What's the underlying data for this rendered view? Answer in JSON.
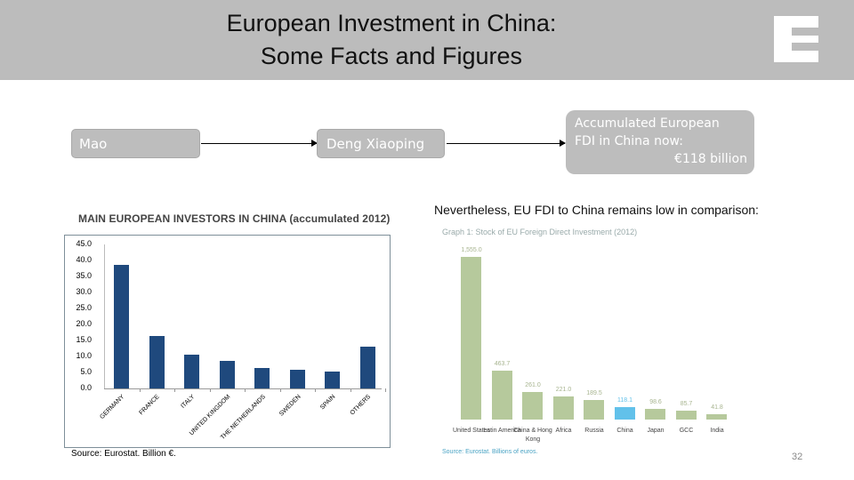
{
  "header": {
    "title_line1": "European Investment in China:",
    "title_line2": "Some Facts and Figures",
    "logo_letter": "E"
  },
  "timeline": {
    "mao": "Mao",
    "deng": "Deng Xiaoping",
    "fdi_line1": "Accumulated European",
    "fdi_line2": "FDI in China now:",
    "fdi_amount": "€118 billion"
  },
  "left_section": {
    "heading": "MAIN EUROPEAN INVESTORS IN CHINA (accumulated 2012)",
    "source": "Source: Eurostat. Billion €."
  },
  "right_section": {
    "heading": "Nevertheless, EU FDI to China remains low in comparison:",
    "graph_title": "Graph 1: Stock of EU Foreign Direct Investment (2012)",
    "source": "Source: Eurostat. Billions of euros."
  },
  "page_number": "32",
  "colors": {
    "header_bg": "#bcbcbc",
    "left_bar": "#1f497d",
    "right_bar": "#b6c99c",
    "highlight_bar": "#62c1ea"
  },
  "chart_data": [
    {
      "type": "bar",
      "title": "MAIN EUROPEAN INVESTORS IN CHINA (accumulated 2012)",
      "xlabel": "",
      "ylabel": "Billion €",
      "ylim": [
        0,
        45
      ],
      "yticks": [
        "0.0",
        "5.0",
        "10.0",
        "15.0",
        "20.0",
        "25.0",
        "30.0",
        "35.0",
        "40.0",
        "45.0"
      ],
      "grid": false,
      "legend": "none",
      "categories": [
        "GERMANY",
        "FRANCE",
        "ITALY",
        "UNITED KINGDOM",
        "THE NETHERLANDS",
        "SWEDEN",
        "SPAIN",
        "OTHERS"
      ],
      "values": [
        38.6,
        16.4,
        10.6,
        8.6,
        6.4,
        5.8,
        5.3,
        13.1
      ]
    },
    {
      "type": "bar",
      "title": "Graph 1: Stock of EU Foreign Direct Investment (2012)",
      "xlabel": "",
      "ylabel": "Billions of euros",
      "grid": false,
      "legend": "none",
      "categories": [
        "United States",
        "Latin America",
        "China & Hong Kong",
        "Africa",
        "Russia",
        "China",
        "Japan",
        "GCC",
        "India"
      ],
      "value_labels": [
        "1,555.0",
        "463.7",
        "261.0",
        "221.0",
        "189.5",
        "118.1",
        "98.6",
        "85.7",
        "41.8"
      ],
      "values": [
        1555.0,
        463.7,
        261.0,
        221.0,
        189.5,
        118.1,
        98.6,
        85.7,
        41.8
      ],
      "highlight": "China"
    }
  ]
}
